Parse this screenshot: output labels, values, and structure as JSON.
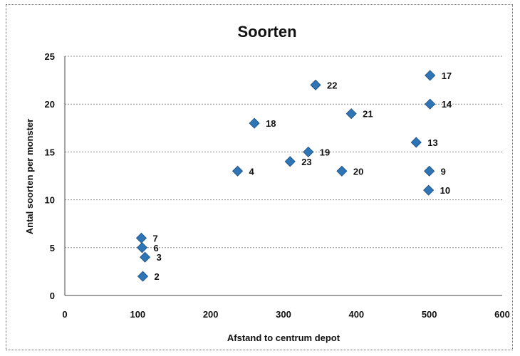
{
  "chart_data": {
    "type": "scatter",
    "title": "Soorten",
    "xlabel": "Afstand to centrum depot",
    "ylabel": "Antal soorten per monster",
    "xlim": [
      0,
      600
    ],
    "ylim": [
      0,
      25
    ],
    "xticks": [
      "0",
      "100",
      "200",
      "300",
      "400",
      "500",
      "600"
    ],
    "yticks": [
      "0",
      "5",
      "10",
      "15",
      "20",
      "25"
    ],
    "grid": true,
    "marker_color": "#2E75B6",
    "points": [
      {
        "x": 107,
        "y": 2,
        "label": "2"
      },
      {
        "x": 110,
        "y": 4,
        "label": "3"
      },
      {
        "x": 106,
        "y": 5,
        "label": "6"
      },
      {
        "x": 105,
        "y": 6,
        "label": "7"
      },
      {
        "x": 237,
        "y": 13,
        "label": "4"
      },
      {
        "x": 260,
        "y": 18,
        "label": "18"
      },
      {
        "x": 309,
        "y": 14,
        "label": "23"
      },
      {
        "x": 334,
        "y": 15,
        "label": "19"
      },
      {
        "x": 344,
        "y": 22,
        "label": "22"
      },
      {
        "x": 380,
        "y": 13,
        "label": "20"
      },
      {
        "x": 393,
        "y": 19,
        "label": "21"
      },
      {
        "x": 482,
        "y": 16,
        "label": "13"
      },
      {
        "x": 500,
        "y": 13,
        "label": "9"
      },
      {
        "x": 499,
        "y": 11,
        "label": "10"
      },
      {
        "x": 501,
        "y": 20,
        "label": "14"
      },
      {
        "x": 501,
        "y": 23,
        "label": "17"
      }
    ]
  }
}
